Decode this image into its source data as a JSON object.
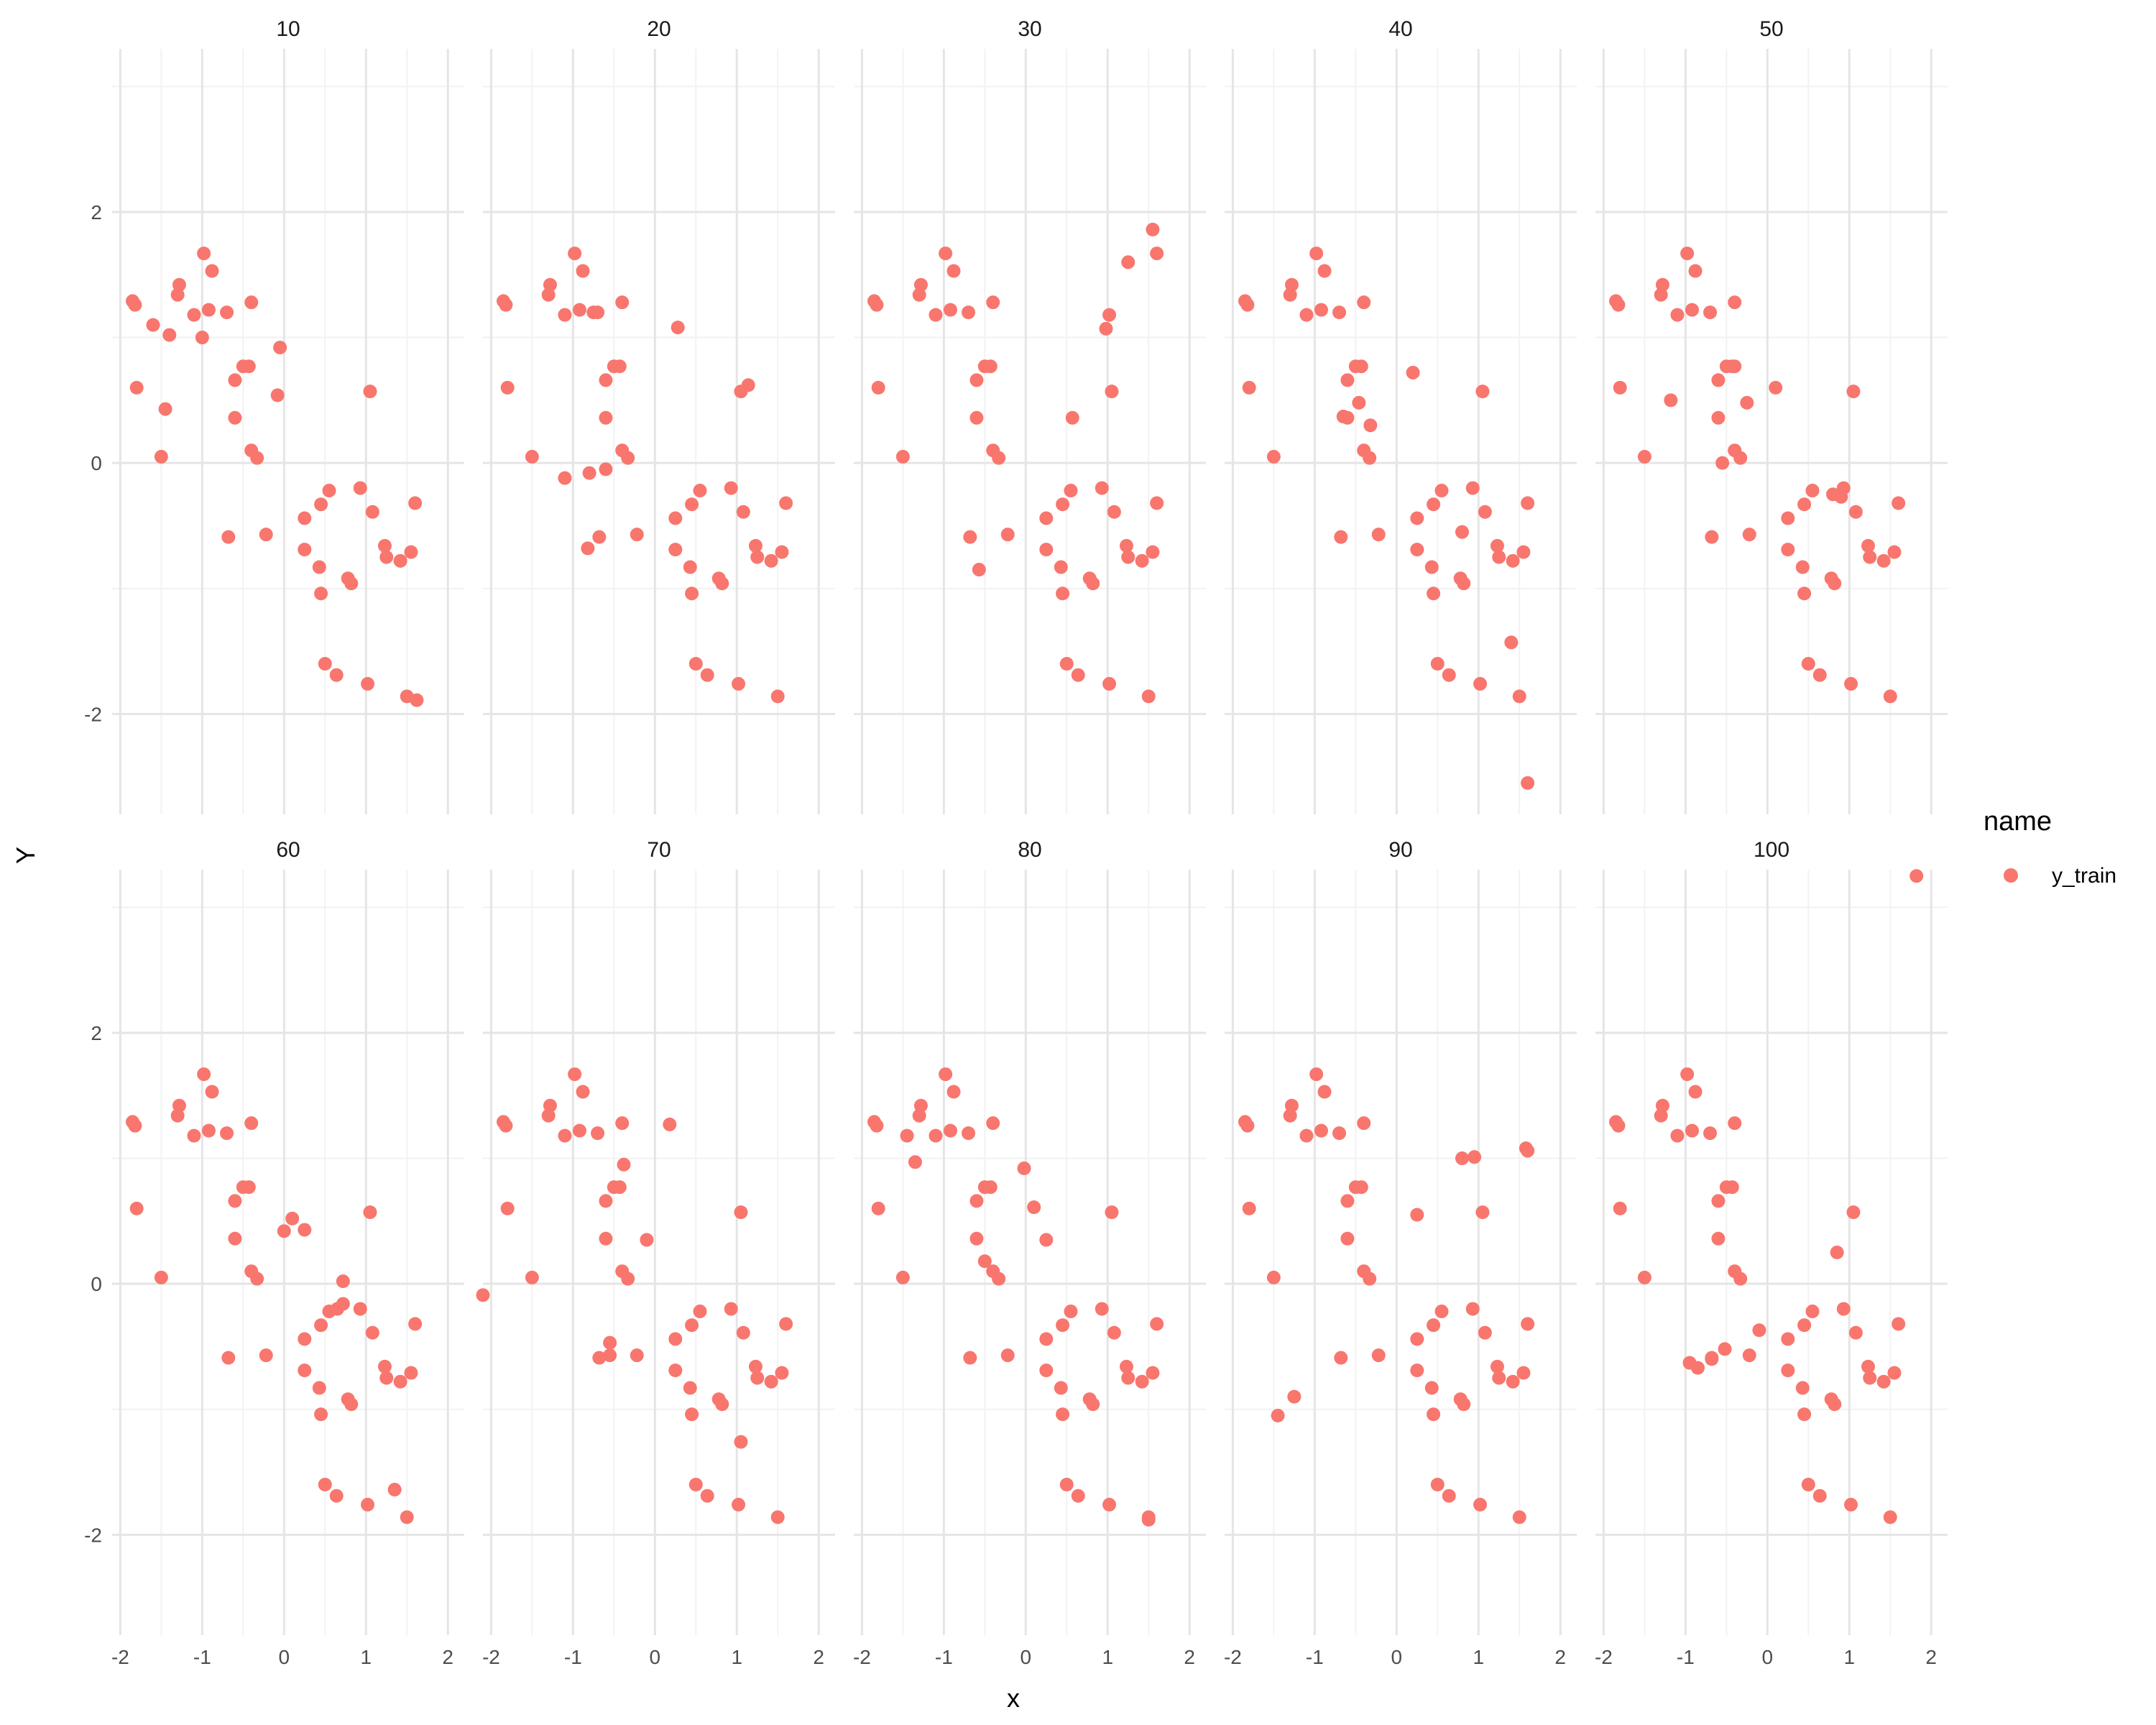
{
  "chart_data": {
    "type": "scatter",
    "facet_labels": [
      "10",
      "20",
      "30",
      "40",
      "50",
      "60",
      "70",
      "80",
      "90",
      "100"
    ],
    "xlabel": "x",
    "ylabel": "Y",
    "xlim": [
      -2.1,
      2.2
    ],
    "ylim": [
      -2.8,
      3.3
    ],
    "x_ticks": [
      -2,
      -1,
      0,
      1,
      2
    ],
    "x_tick_labels": [
      "-2",
      "-1",
      "0",
      "1",
      "2"
    ],
    "y_ticks": [
      -2,
      0,
      2
    ],
    "y_tick_labels": [
      "-2",
      "0",
      "2"
    ],
    "grid": true,
    "legend": {
      "title": "name",
      "entries": [
        {
          "label": "y_train",
          "color": "#F8766D"
        }
      ],
      "position": "right"
    },
    "point_color": "#F8766D",
    "base_points": [
      [
        -1.85,
        1.29
      ],
      [
        -1.82,
        1.26
      ],
      [
        -1.8,
        0.6
      ],
      [
        -1.5,
        0.05
      ],
      [
        -1.28,
        1.42
      ],
      [
        -1.3,
        1.34
      ],
      [
        -1.1,
        1.18
      ],
      [
        -0.98,
        1.67
      ],
      [
        -0.92,
        1.22
      ],
      [
        -0.88,
        1.53
      ],
      [
        -0.7,
        1.2
      ],
      [
        -0.4,
        1.28
      ],
      [
        -0.6,
        0.66
      ],
      [
        -0.5,
        0.77
      ],
      [
        -0.43,
        0.77
      ],
      [
        -0.6,
        0.36
      ],
      [
        -0.4,
        0.1
      ],
      [
        -0.33,
        0.04
      ],
      [
        -0.68,
        -0.59
      ],
      [
        -0.22,
        -0.57
      ],
      [
        0.25,
        -0.44
      ],
      [
        0.45,
        -0.33
      ],
      [
        0.55,
        -0.22
      ],
      [
        0.93,
        -0.2
      ],
      [
        1.08,
        -0.39
      ],
      [
        1.6,
        -0.32
      ],
      [
        0.25,
        -0.69
      ],
      [
        0.43,
        -0.83
      ],
      [
        0.45,
        -1.04
      ],
      [
        0.78,
        -0.92
      ],
      [
        0.82,
        -0.96
      ],
      [
        1.23,
        -0.66
      ],
      [
        1.25,
        -0.75
      ],
      [
        1.42,
        -0.78
      ],
      [
        1.55,
        -0.71
      ],
      [
        0.5,
        -1.6
      ],
      [
        0.64,
        -1.69
      ],
      [
        1.02,
        -1.76
      ],
      [
        1.5,
        -1.86
      ]
    ],
    "panel_points": [
      [
        [
          -1.6,
          1.1
        ],
        [
          -1.4,
          1.02
        ],
        [
          -1.0,
          1.0
        ],
        [
          -1.45,
          0.43
        ],
        [
          -0.05,
          0.92
        ],
        [
          -0.08,
          0.54
        ],
        [
          1.05,
          0.57
        ],
        [
          1.62,
          -1.89
        ]
      ],
      [
        [
          -1.1,
          -0.12
        ],
        [
          -0.8,
          -0.08
        ],
        [
          -0.75,
          1.2
        ],
        [
          -0.82,
          -0.68
        ],
        [
          -0.6,
          -0.05
        ],
        [
          0.28,
          1.08
        ],
        [
          1.05,
          0.57
        ],
        [
          1.14,
          0.62
        ]
      ],
      [
        [
          -0.57,
          -0.85
        ],
        [
          0.57,
          0.36
        ],
        [
          0.98,
          1.07
        ],
        [
          1.02,
          1.18
        ],
        [
          1.25,
          1.6
        ],
        [
          1.55,
          1.86
        ],
        [
          1.6,
          1.67
        ],
        [
          1.05,
          0.57
        ]
      ],
      [
        [
          -0.46,
          0.48
        ],
        [
          -0.32,
          0.3
        ],
        [
          0.2,
          0.72
        ],
        [
          0.8,
          -0.55
        ],
        [
          1.4,
          -1.43
        ],
        [
          1.6,
          -2.55
        ],
        [
          1.05,
          0.57
        ],
        [
          -0.65,
          0.37
        ]
      ],
      [
        [
          -1.18,
          0.5
        ],
        [
          -0.55,
          0.0
        ],
        [
          -0.25,
          0.48
        ],
        [
          0.1,
          0.6
        ],
        [
          0.9,
          -0.27
        ],
        [
          0.8,
          -0.25
        ],
        [
          1.05,
          0.57
        ],
        [
          -0.4,
          0.77
        ]
      ],
      [
        [
          0.0,
          0.42
        ],
        [
          0.1,
          0.52
        ],
        [
          0.25,
          0.43
        ],
        [
          0.65,
          -0.2
        ],
        [
          0.72,
          0.02
        ],
        [
          0.72,
          -0.16
        ],
        [
          1.05,
          0.57
        ],
        [
          1.35,
          -1.64
        ]
      ],
      [
        [
          -2.1,
          -0.09
        ],
        [
          -0.55,
          -0.47
        ],
        [
          -0.55,
          -0.57
        ],
        [
          -0.38,
          0.95
        ],
        [
          -0.1,
          0.35
        ],
        [
          0.18,
          1.27
        ],
        [
          1.05,
          0.57
        ],
        [
          1.05,
          -1.26
        ]
      ],
      [
        [
          -1.35,
          0.97
        ],
        [
          -0.02,
          0.92
        ],
        [
          0.1,
          0.61
        ],
        [
          0.25,
          0.35
        ],
        [
          -0.5,
          0.18
        ],
        [
          1.05,
          0.57
        ],
        [
          -1.45,
          1.18
        ],
        [
          1.5,
          -1.88
        ]
      ],
      [
        [
          -1.25,
          -0.9
        ],
        [
          -1.45,
          -1.05
        ],
        [
          0.25,
          0.55
        ],
        [
          0.8,
          1.0
        ],
        [
          0.95,
          1.01
        ],
        [
          1.05,
          0.57
        ],
        [
          1.58,
          1.08
        ],
        [
          1.6,
          1.06
        ]
      ],
      [
        [
          -0.95,
          -0.63
        ],
        [
          -0.85,
          -0.67
        ],
        [
          -0.68,
          -0.6
        ],
        [
          -0.52,
          -0.52
        ],
        [
          -0.1,
          -0.37
        ],
        [
          0.85,
          0.25
        ],
        [
          1.05,
          0.57
        ],
        [
          1.82,
          3.25
        ]
      ]
    ]
  }
}
